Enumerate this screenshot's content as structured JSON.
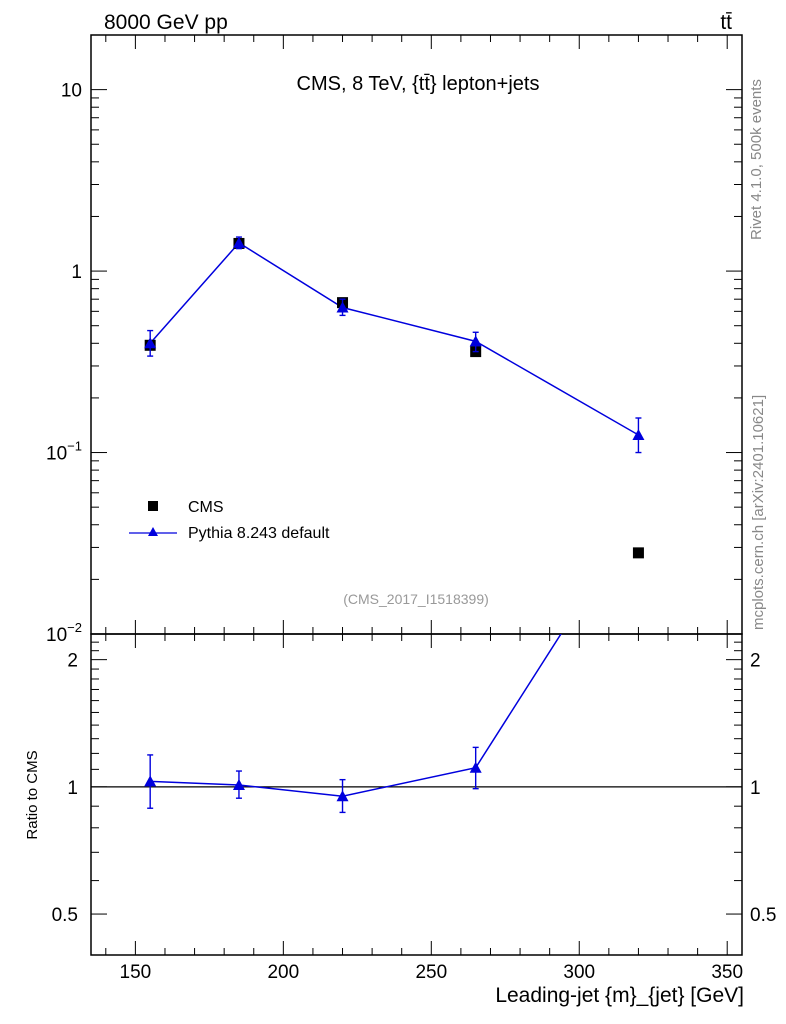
{
  "header": {
    "left": "8000 GeV pp",
    "right": "tt̄"
  },
  "side_text": {
    "rivet": "Rivet 4.1.0,  500k events",
    "mcplots": "mcplots.cern.ch [arXiv:2401.10621]"
  },
  "watermark": "(CMS_2017_I1518399)",
  "chart_data": [
    {
      "type": "scatter",
      "title": "CMS, 8 TeV, {tt̄} lepton+jets",
      "xlabel": "Leading-jet {m}_{jet} [GeV]",
      "ylabel": "",
      "yscale": "log",
      "xlim": [
        135,
        355
      ],
      "ylim": [
        0.01,
        20
      ],
      "yticks": [
        {
          "value": 0.01,
          "base": "10",
          "exp": "−2"
        },
        {
          "value": 0.1,
          "base": "10",
          "exp": "−1"
        },
        {
          "value": 1,
          "base": "1",
          "exp": ""
        },
        {
          "value": 10,
          "base": "10",
          "exp": ""
        }
      ],
      "xticks": [
        150,
        200,
        250,
        300,
        350
      ],
      "legend_position": "lower-left",
      "series": [
        {
          "name": "CMS",
          "color": "#000000",
          "marker": "square",
          "x": [
            155,
            185,
            220,
            265,
            320
          ],
          "y": [
            0.39,
            1.42,
            0.67,
            0.36,
            0.028
          ]
        },
        {
          "name": "Pythia 8.243 default",
          "color": "#0000dd",
          "marker": "triangle",
          "x": [
            155,
            185,
            220,
            265,
            320
          ],
          "y": [
            0.4,
            1.43,
            0.63,
            0.41,
            0.125
          ],
          "yerr_low": [
            0.06,
            0.1,
            0.06,
            0.05,
            0.025
          ],
          "yerr_high": [
            0.07,
            0.11,
            0.07,
            0.05,
            0.03
          ]
        }
      ]
    },
    {
      "type": "line",
      "ylabel": "Ratio to CMS",
      "yscale": "log",
      "xlim": [
        135,
        355
      ],
      "ylim": [
        0.4,
        2.3
      ],
      "yticks": [
        0.5,
        1,
        2
      ],
      "series": [
        {
          "name": "Pythia 8.243 default / CMS",
          "color": "#0000dd",
          "marker": "triangle",
          "x": [
            155,
            185,
            220,
            265,
            320
          ],
          "y": [
            1.03,
            1.01,
            0.95,
            1.11,
            4.46
          ],
          "yerr_low": [
            0.14,
            0.07,
            0.08,
            0.12,
            0.9
          ],
          "yerr_high": [
            0.16,
            0.08,
            0.09,
            0.13,
            1.0
          ]
        }
      ],
      "reference_line": 1
    }
  ]
}
